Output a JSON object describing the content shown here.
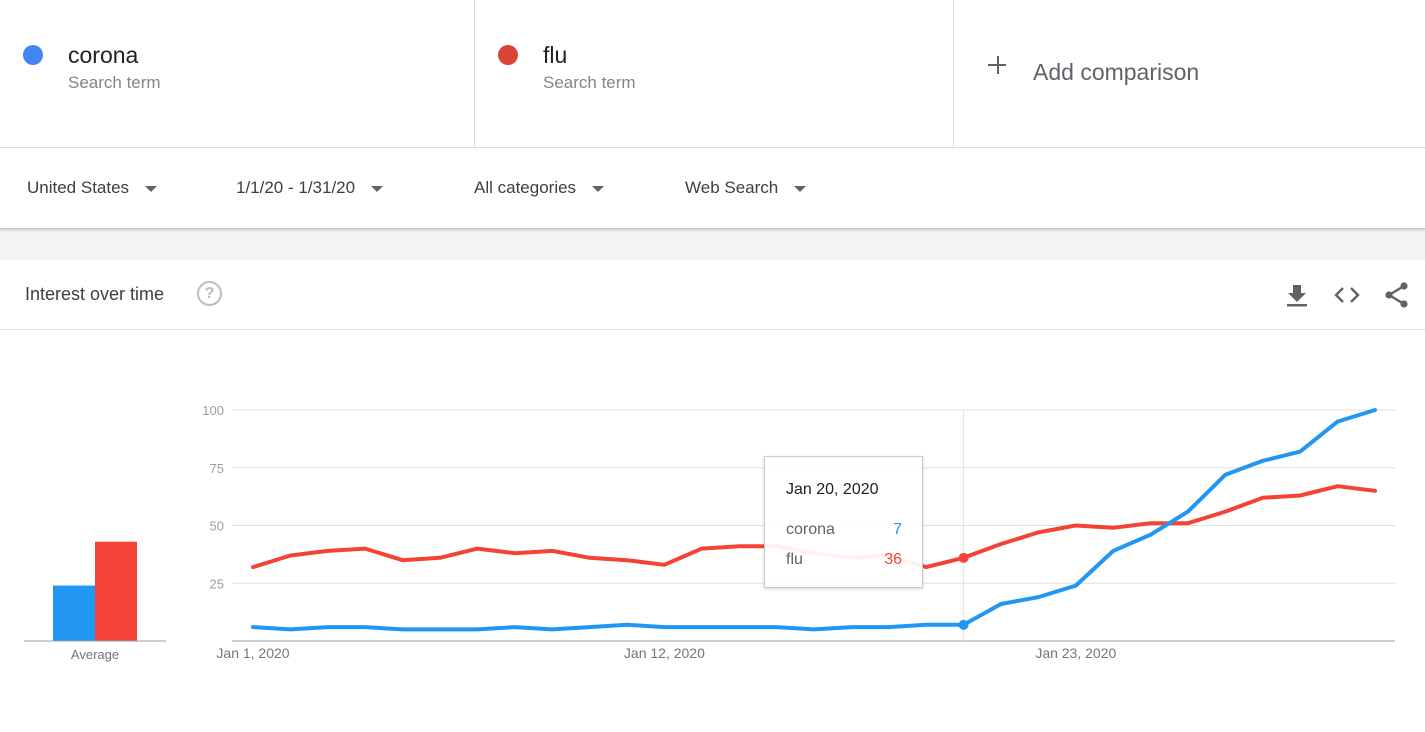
{
  "terms": [
    {
      "name": "corona",
      "type": "Search term",
      "color": "#4285f4"
    },
    {
      "name": "flu",
      "type": "Search term",
      "color": "#db4437"
    }
  ],
  "add_comparison": "Add comparison",
  "filters": {
    "region": "United States",
    "date_range": "1/1/20 - 1/31/20",
    "category": "All categories",
    "search_type": "Web Search"
  },
  "card": {
    "title": "Interest over time",
    "help_glyph": "?",
    "icons": [
      "help-icon",
      "download-icon",
      "embed-icon",
      "share-icon"
    ]
  },
  "tooltip": {
    "date": "Jan 20, 2020",
    "rows": [
      {
        "term": "corona",
        "value": "7"
      },
      {
        "term": "flu",
        "value": "36"
      }
    ]
  },
  "chart_data": {
    "type": "line",
    "x": [
      "Jan 1, 2020",
      "Jan 2, 2020",
      "Jan 3, 2020",
      "Jan 4, 2020",
      "Jan 5, 2020",
      "Jan 6, 2020",
      "Jan 7, 2020",
      "Jan 8, 2020",
      "Jan 9, 2020",
      "Jan 10, 2020",
      "Jan 11, 2020",
      "Jan 12, 2020",
      "Jan 13, 2020",
      "Jan 14, 2020",
      "Jan 15, 2020",
      "Jan 16, 2020",
      "Jan 17, 2020",
      "Jan 18, 2020",
      "Jan 19, 2020",
      "Jan 20, 2020",
      "Jan 21, 2020",
      "Jan 22, 2020",
      "Jan 23, 2020",
      "Jan 24, 2020",
      "Jan 25, 2020",
      "Jan 26, 2020",
      "Jan 27, 2020",
      "Jan 28, 2020",
      "Jan 29, 2020",
      "Jan 30, 2020",
      "Jan 31, 2020"
    ],
    "series": [
      {
        "name": "corona",
        "color": "#2196f3",
        "values": [
          6,
          5,
          6,
          6,
          5,
          5,
          5,
          6,
          5,
          6,
          7,
          6,
          6,
          6,
          6,
          5,
          6,
          6,
          7,
          7,
          16,
          19,
          24,
          39,
          46,
          56,
          72,
          78,
          82,
          95,
          100
        ]
      },
      {
        "name": "flu",
        "color": "#f44336",
        "values": [
          32,
          37,
          39,
          40,
          35,
          36,
          40,
          38,
          39,
          36,
          35,
          33,
          40,
          41,
          41,
          38,
          36,
          37,
          32,
          36,
          42,
          47,
          50,
          49,
          51,
          51,
          56,
          62,
          63,
          67,
          65
        ]
      }
    ],
    "y_ticks": [
      "25",
      "50",
      "75",
      "100"
    ],
    "x_tick_labels": [
      "Jan 1, 2020",
      "Jan 12, 2020",
      "Jan 23, 2020"
    ],
    "ylim": [
      0,
      100
    ],
    "grid": true,
    "highlight_index": 19,
    "average": {
      "label": "Average",
      "values": [
        24,
        43
      ]
    }
  }
}
